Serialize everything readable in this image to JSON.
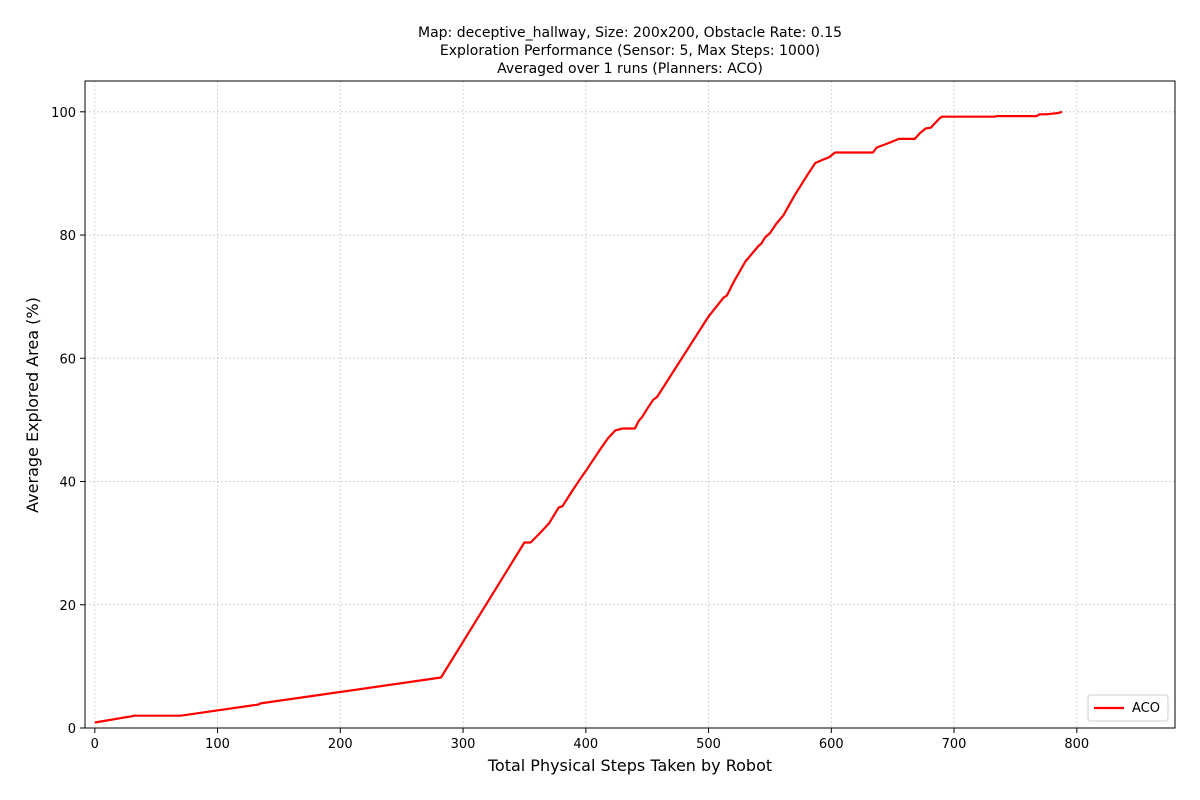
{
  "chart_data": {
    "type": "line",
    "title_lines": [
      "Map: deceptive_hallway, Size: 200x200, Obstacle Rate: 0.15",
      "Exploration Performance (Sensor: 5, Max Steps: 1000)",
      "Averaged over 1 runs (Planners: ACO)"
    ],
    "xlabel": "Total Physical Steps Taken by Robot",
    "ylabel": "Average Explored Area (%)",
    "xlim": [
      -8,
      880
    ],
    "ylim": [
      0,
      105
    ],
    "xticks": [
      0,
      100,
      200,
      300,
      400,
      500,
      600,
      700,
      800
    ],
    "yticks": [
      0,
      20,
      40,
      60,
      80,
      100
    ],
    "grid": true,
    "legend_position": "lower-right",
    "series": [
      {
        "name": "ACO",
        "color": "#ff0000",
        "x": [
          0,
          30,
          32,
          70,
          133,
          135,
          282,
          350,
          355,
          362,
          370,
          378,
          381,
          388,
          395,
          401,
          405,
          412,
          418,
          424,
          430,
          440,
          443,
          446,
          450,
          455,
          458,
          500,
          512,
          515,
          520,
          530,
          541,
          543,
          546,
          550,
          555,
          561,
          570,
          580,
          587,
          594,
          598,
          603,
          610,
          620,
          634,
          637,
          645,
          655,
          660,
          668,
          672,
          677,
          681,
          688,
          690,
          700,
          733,
          735,
          740,
          767,
          770,
          775,
          780,
          785,
          788
        ],
        "y": [
          0.9,
          1.9,
          2.0,
          2.0,
          3.8,
          4.0,
          8.2,
          30.1,
          30.1,
          31.5,
          33.2,
          35.8,
          36.0,
          38.2,
          40.3,
          42.0,
          43.2,
          45.3,
          47.0,
          48.3,
          48.6,
          48.6,
          49.8,
          50.5,
          51.8,
          53.3,
          53.7,
          66.8,
          69.8,
          70.2,
          72.2,
          75.7,
          78.3,
          78.6,
          79.6,
          80.3,
          81.8,
          83.2,
          86.4,
          89.6,
          91.7,
          92.3,
          92.6,
          93.4,
          93.4,
          93.4,
          93.4,
          94.2,
          94.8,
          95.6,
          95.6,
          95.6,
          96.5,
          97.3,
          97.4,
          98.9,
          99.2,
          99.2,
          99.2,
          99.3,
          99.3,
          99.3,
          99.6,
          99.6,
          99.7,
          99.8,
          100.0
        ]
      }
    ]
  }
}
